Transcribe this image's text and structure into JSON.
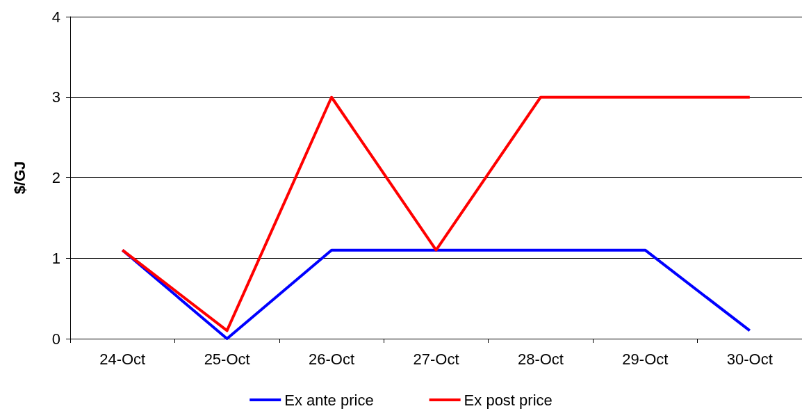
{
  "chart_data": {
    "type": "line",
    "ylabel": "$/GJ",
    "categories": [
      "24-Oct",
      "25-Oct",
      "26-Oct",
      "27-Oct",
      "28-Oct",
      "29-Oct",
      "30-Oct"
    ],
    "series": [
      {
        "name": "Ex ante price",
        "color": "#0000ff",
        "values": [
          1.1,
          0,
          1.1,
          1.1,
          1.1,
          1.1,
          0.1
        ]
      },
      {
        "name": "Ex post price",
        "color": "#ff0000",
        "values": [
          1.1,
          0.1,
          3,
          1.1,
          3,
          3,
          3
        ]
      }
    ],
    "ylim": [
      0,
      4
    ],
    "yticks": [
      0,
      1,
      2,
      3,
      4
    ],
    "grid": "y",
    "legend": "bottom",
    "marker": "none",
    "line_style": "solid"
  }
}
